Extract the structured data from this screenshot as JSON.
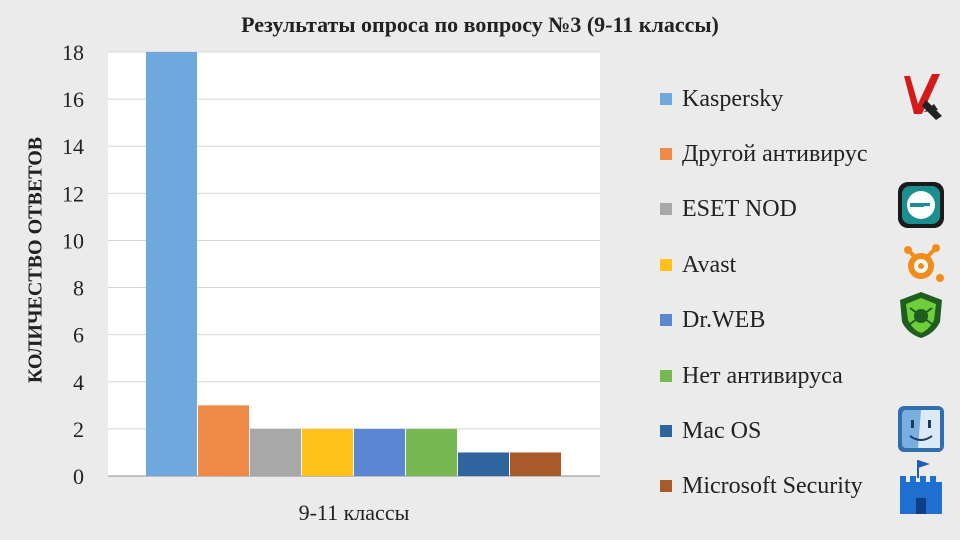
{
  "chart_data": {
    "type": "bar",
    "title": "Результаты опроса по вопросу №3 (9-11 классы)",
    "ylabel": "КОЛИЧЕСТВО ОТВЕТОВ",
    "xlabel": "",
    "categories": [
      "9-11 классы"
    ],
    "ylim": [
      0,
      18
    ],
    "yticks": [
      0,
      2,
      4,
      6,
      8,
      10,
      12,
      14,
      16,
      18
    ],
    "grid": true,
    "legend_position": "right",
    "series": [
      {
        "name": "Kaspersky",
        "values": [
          18
        ],
        "color": "#6fa8dc"
      },
      {
        "name": "Другой антивирус",
        "values": [
          3
        ],
        "color": "#ef8a47"
      },
      {
        "name": "ESET NOD",
        "values": [
          2
        ],
        "color": "#a8a8a8"
      },
      {
        "name": "Avast",
        "values": [
          2
        ],
        "color": "#ffc21a"
      },
      {
        "name": "Dr.WEB",
        "values": [
          2
        ],
        "color": "#5b87d2"
      },
      {
        "name": "Нет антивируса",
        "values": [
          2
        ],
        "color": "#76b852"
      },
      {
        "name": "Mac OS",
        "values": [
          1
        ],
        "color": "#2f659e"
      },
      {
        "name": "Microsoft Security",
        "values": [
          1
        ],
        "color": "#a95a2a"
      }
    ]
  },
  "legend_icons": [
    "kaspersky-logo",
    "eset-logo",
    "avast-logo",
    "drweb-logo",
    "macos-finder-logo",
    "microsoft-security-castle-logo"
  ]
}
